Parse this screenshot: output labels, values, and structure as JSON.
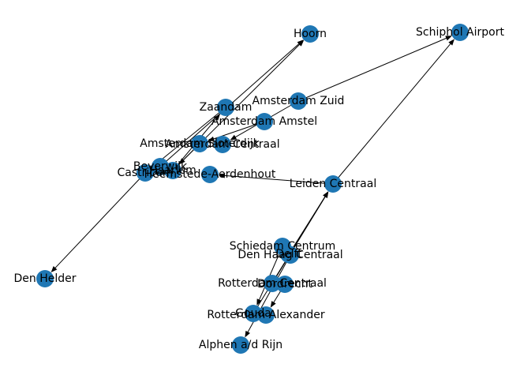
{
  "graph": {
    "node_color": "#1f77b4",
    "edge_color": "#000000",
    "nodes": [
      {
        "id": "hoorn",
        "label": "Hoorn"
      },
      {
        "id": "schiphol",
        "label": "Schiphol Airport"
      },
      {
        "id": "zaandam",
        "label": "Zaandam"
      },
      {
        "id": "amsterdam_zuid",
        "label": "Amsterdam Zuid"
      },
      {
        "id": "amsterdam_amstel",
        "label": "Amsterdam Amstel"
      },
      {
        "id": "amsterdam_sloterdijk",
        "label": "Amsterdam Sloterdijk"
      },
      {
        "id": "amsterdam_centraal",
        "label": "Amsterdam Centraal"
      },
      {
        "id": "beverwijk",
        "label": "Beverwijk"
      },
      {
        "id": "haarlem",
        "label": "Haarlem"
      },
      {
        "id": "castricum",
        "label": "Castricum"
      },
      {
        "id": "heemstede",
        "label": "Heemstede-Aerdenhout"
      },
      {
        "id": "leiden",
        "label": "Leiden Centraal"
      },
      {
        "id": "den_helder",
        "label": "Den Helder"
      },
      {
        "id": "schiedam",
        "label": "Schiedam Centrum"
      },
      {
        "id": "delft",
        "label": "Delft"
      },
      {
        "id": "den_haag",
        "label": "Den Haag Centraal"
      },
      {
        "id": "rotterdam_centraal",
        "label": "Rotterdam Centraal"
      },
      {
        "id": "dordrecht",
        "label": "Dordrecht"
      },
      {
        "id": "gouda",
        "label": "Gouda"
      },
      {
        "id": "rotterdam_alexander",
        "label": "Rotterdam Alexander"
      },
      {
        "id": "alphen",
        "label": "Alphen a/d Rijn"
      }
    ],
    "edges": [
      {
        "source": "beverwijk",
        "target": "hoorn"
      },
      {
        "source": "haarlem",
        "target": "hoorn"
      },
      {
        "source": "amsterdam_zuid",
        "target": "schiphol"
      },
      {
        "source": "leiden",
        "target": "schiphol"
      },
      {
        "source": "zaandam",
        "target": "castricum"
      },
      {
        "source": "amsterdam_zuid",
        "target": "amsterdam_centraal"
      },
      {
        "source": "amsterdam_amstel",
        "target": "amsterdam_sloterdijk"
      },
      {
        "source": "amsterdam_sloterdijk",
        "target": "haarlem"
      },
      {
        "source": "haarlem",
        "target": "zaandam"
      },
      {
        "source": "leiden",
        "target": "heemstede"
      },
      {
        "source": "castricum",
        "target": "den_helder"
      },
      {
        "source": "schiedam",
        "target": "gouda"
      },
      {
        "source": "delft",
        "target": "leiden"
      },
      {
        "source": "den_haag",
        "target": "alphen"
      },
      {
        "source": "rotterdam_centraal",
        "target": "leiden"
      },
      {
        "source": "dordrecht",
        "target": "rotterdam_alexander"
      },
      {
        "source": "gouda",
        "target": "leiden"
      }
    ]
  }
}
